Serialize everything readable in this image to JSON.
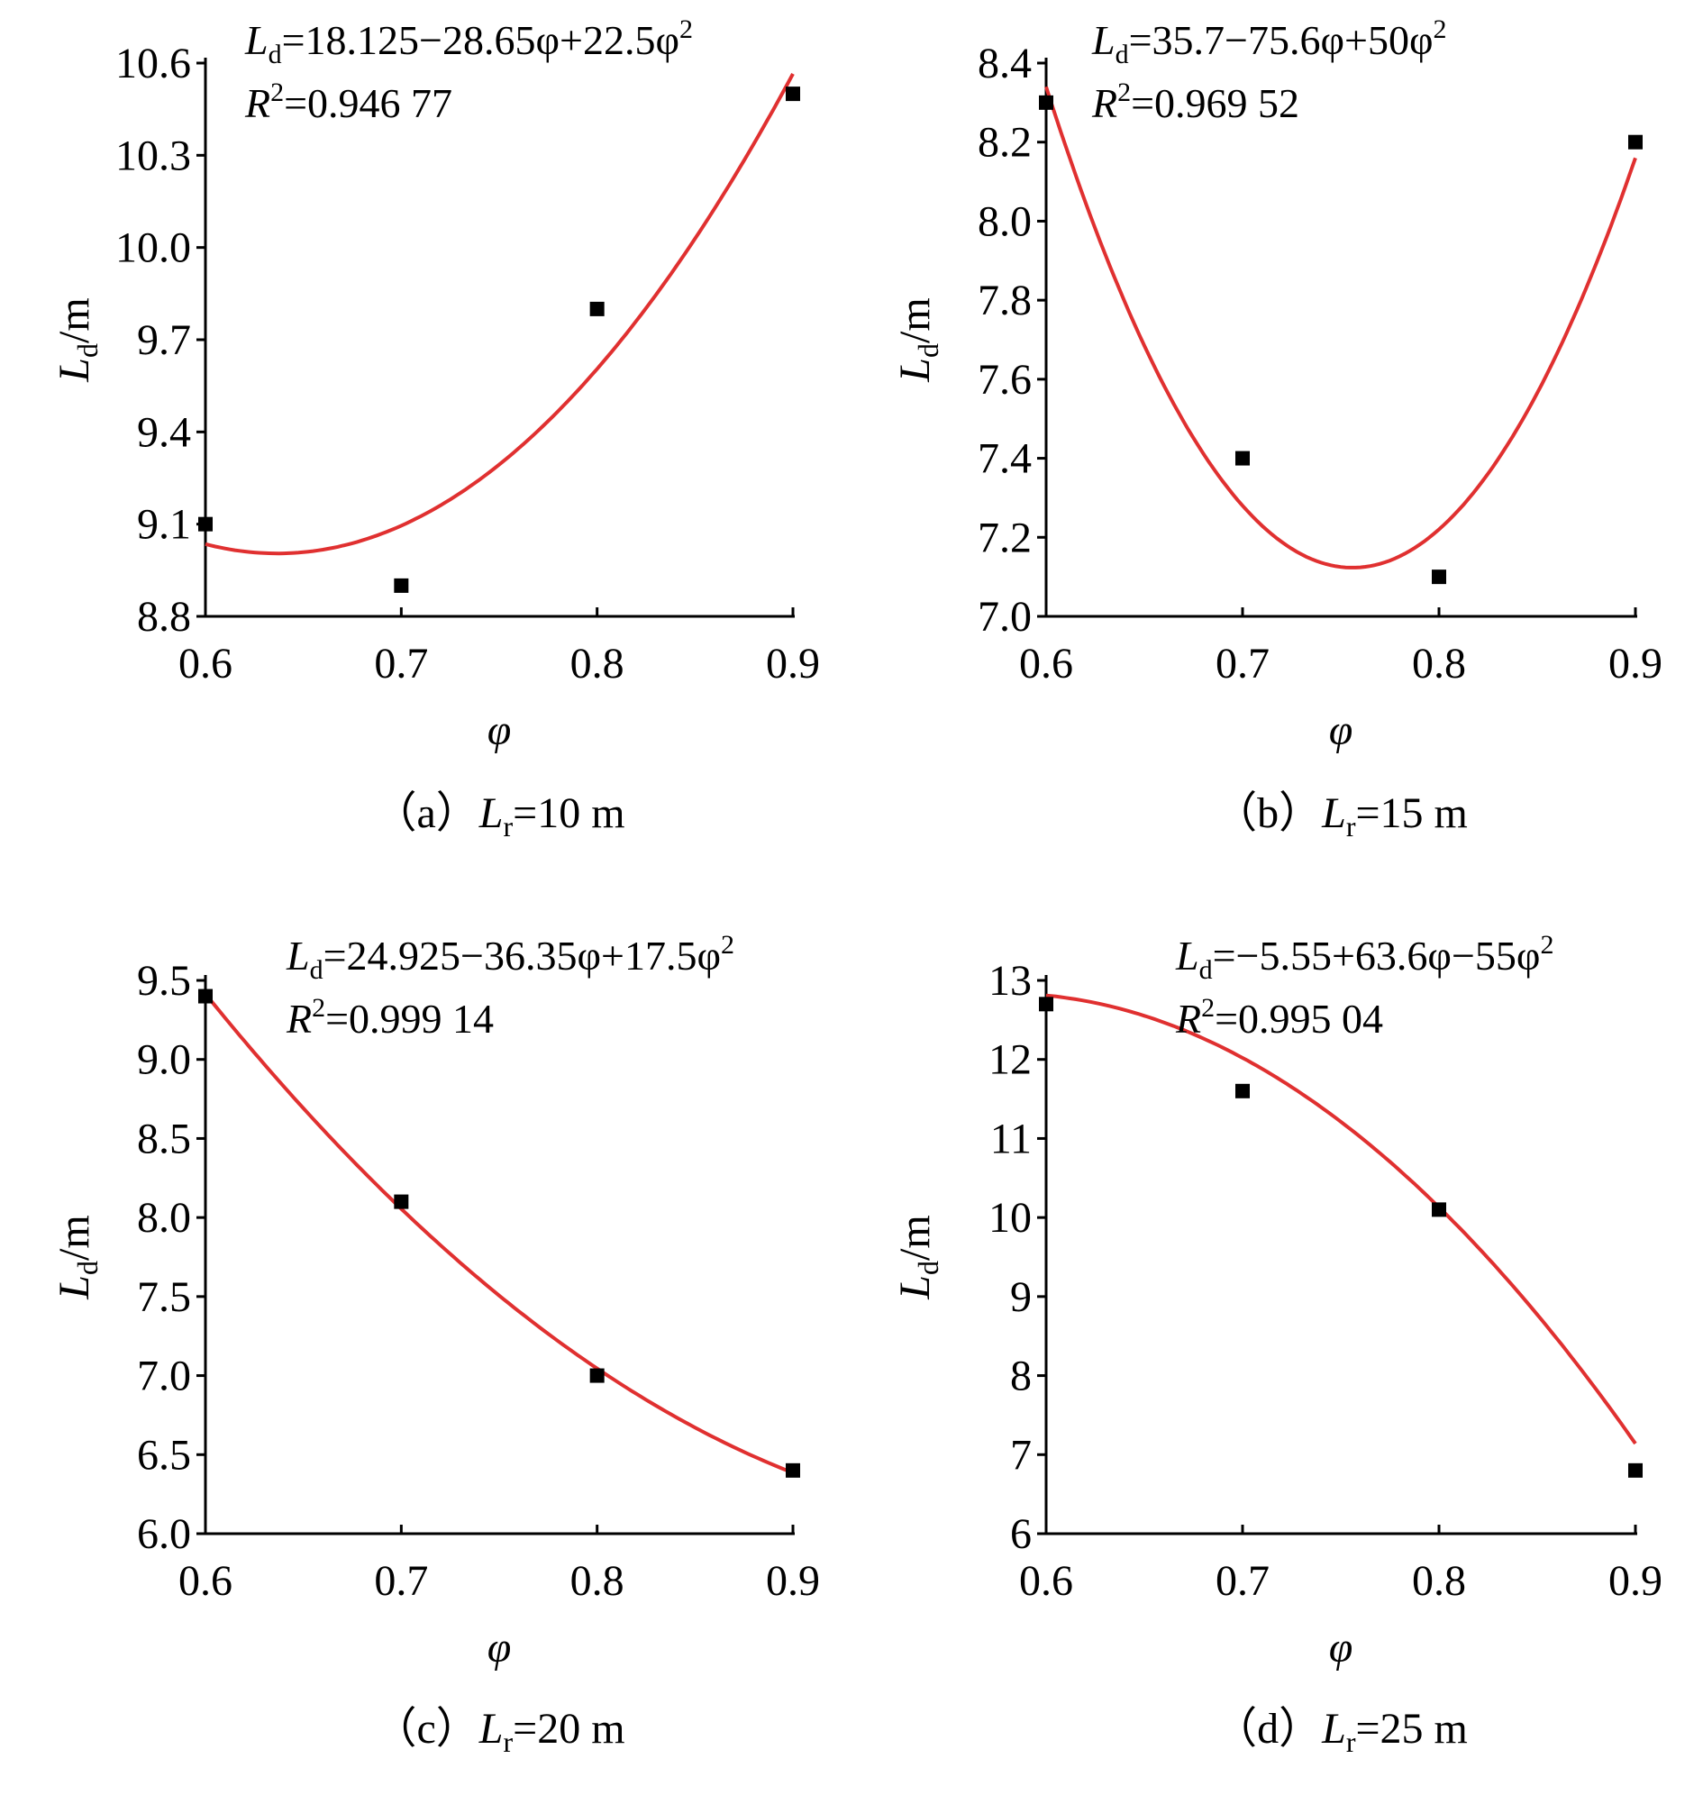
{
  "figure": {
    "panels": [
      {
        "caption": {
          "open": "（a）",
          "var": "L",
          "sub": "r",
          "rest": "=10 m"
        },
        "equation": {
          "var": "L",
          "sub": "d",
          "rhs": "=18.125−28.65φ+22.5φ",
          "sup": "2"
        },
        "r2": {
          "var": "R",
          "sup": "2",
          "rest": "=0.946 77"
        },
        "xlabel": "φ",
        "ylabel": {
          "var": "L",
          "sub": "d",
          "unit": "/m"
        }
      },
      {
        "caption": {
          "open": "（b）",
          "var": "L",
          "sub": "r",
          "rest": "=15 m"
        },
        "equation": {
          "var": "L",
          "sub": "d",
          "rhs": "=35.7−75.6φ+50φ",
          "sup": "2"
        },
        "r2": {
          "var": "R",
          "sup": "2",
          "rest": "=0.969 52"
        },
        "xlabel": "φ",
        "ylabel": {
          "var": "L",
          "sub": "d",
          "unit": "/m"
        }
      },
      {
        "caption": {
          "open": "（c）",
          "var": "L",
          "sub": "r",
          "rest": "=20 m"
        },
        "equation": {
          "var": "L",
          "sub": "d",
          "rhs": "=24.925−36.35φ+17.5φ",
          "sup": "2"
        },
        "r2": {
          "var": "R",
          "sup": "2",
          "rest": "=0.999 14"
        },
        "xlabel": "φ",
        "ylabel": {
          "var": "L",
          "sub": "d",
          "unit": "/m"
        }
      },
      {
        "caption": {
          "open": "（d）",
          "var": "L",
          "sub": "r",
          "rest": "=25 m"
        },
        "equation": {
          "var": "L",
          "sub": "d",
          "rhs": "=−5.55+63.6φ−55φ",
          "sup": "2"
        },
        "r2": {
          "var": "R",
          "sup": "2",
          "rest": "=0.995 04"
        },
        "xlabel": "φ",
        "ylabel": {
          "var": "L",
          "sub": "d",
          "unit": "/m"
        }
      }
    ]
  },
  "colors": {
    "fit_line": "#e03030",
    "marker": "#000000",
    "axis": "#000000"
  },
  "chart_data": [
    {
      "type": "scatter",
      "x": [
        0.6,
        0.7,
        0.8,
        0.9
      ],
      "y": [
        9.1,
        8.9,
        9.8,
        10.5
      ],
      "fit": {
        "type": "quadratic",
        "coefficients": [
          18.125,
          -28.65,
          22.5
        ]
      },
      "xlim": [
        0.6,
        0.9
      ],
      "ylim": [
        8.8,
        10.6
      ],
      "xticks": [
        "0.6",
        "0.7",
        "0.8",
        "0.9"
      ],
      "yticks": [
        "8.8",
        "9.1",
        "9.4",
        "9.7",
        "10.0",
        "10.3",
        "10.6"
      ],
      "grid": false,
      "legend": "none"
    },
    {
      "type": "scatter",
      "x": [
        0.6,
        0.7,
        0.8,
        0.9
      ],
      "y": [
        8.3,
        7.4,
        7.1,
        8.2
      ],
      "fit": {
        "type": "quadratic",
        "coefficients": [
          35.7,
          -75.6,
          50
        ]
      },
      "xlim": [
        0.6,
        0.9
      ],
      "ylim": [
        7.0,
        8.4
      ],
      "xticks": [
        "0.6",
        "0.7",
        "0.8",
        "0.9"
      ],
      "yticks": [
        "7.0",
        "7.2",
        "7.4",
        "7.6",
        "7.8",
        "8.0",
        "8.2",
        "8.4"
      ],
      "grid": false,
      "legend": "none"
    },
    {
      "type": "scatter",
      "x": [
        0.6,
        0.7,
        0.8,
        0.9
      ],
      "y": [
        9.4,
        8.1,
        7.0,
        6.4
      ],
      "fit": {
        "type": "quadratic",
        "coefficients": [
          24.925,
          -36.35,
          17.5
        ]
      },
      "xlim": [
        0.6,
        0.9
      ],
      "ylim": [
        6.0,
        9.5
      ],
      "xticks": [
        "0.6",
        "0.7",
        "0.8",
        "0.9"
      ],
      "yticks": [
        "6.0",
        "6.5",
        "7.0",
        "7.5",
        "8.0",
        "8.5",
        "9.0",
        "9.5"
      ],
      "grid": false,
      "legend": "none"
    },
    {
      "type": "scatter",
      "x": [
        0.6,
        0.7,
        0.8,
        0.9
      ],
      "y": [
        12.7,
        11.6,
        10.1,
        6.8
      ],
      "fit": {
        "type": "quadratic",
        "coefficients": [
          -5.55,
          63.6,
          -55
        ]
      },
      "xlim": [
        0.6,
        0.9
      ],
      "ylim": [
        6,
        13
      ],
      "xticks": [
        "0.6",
        "0.7",
        "0.8",
        "0.9"
      ],
      "yticks": [
        "6",
        "7",
        "8",
        "9",
        "10",
        "11",
        "12",
        "13"
      ],
      "grid": false,
      "legend": "none"
    }
  ]
}
